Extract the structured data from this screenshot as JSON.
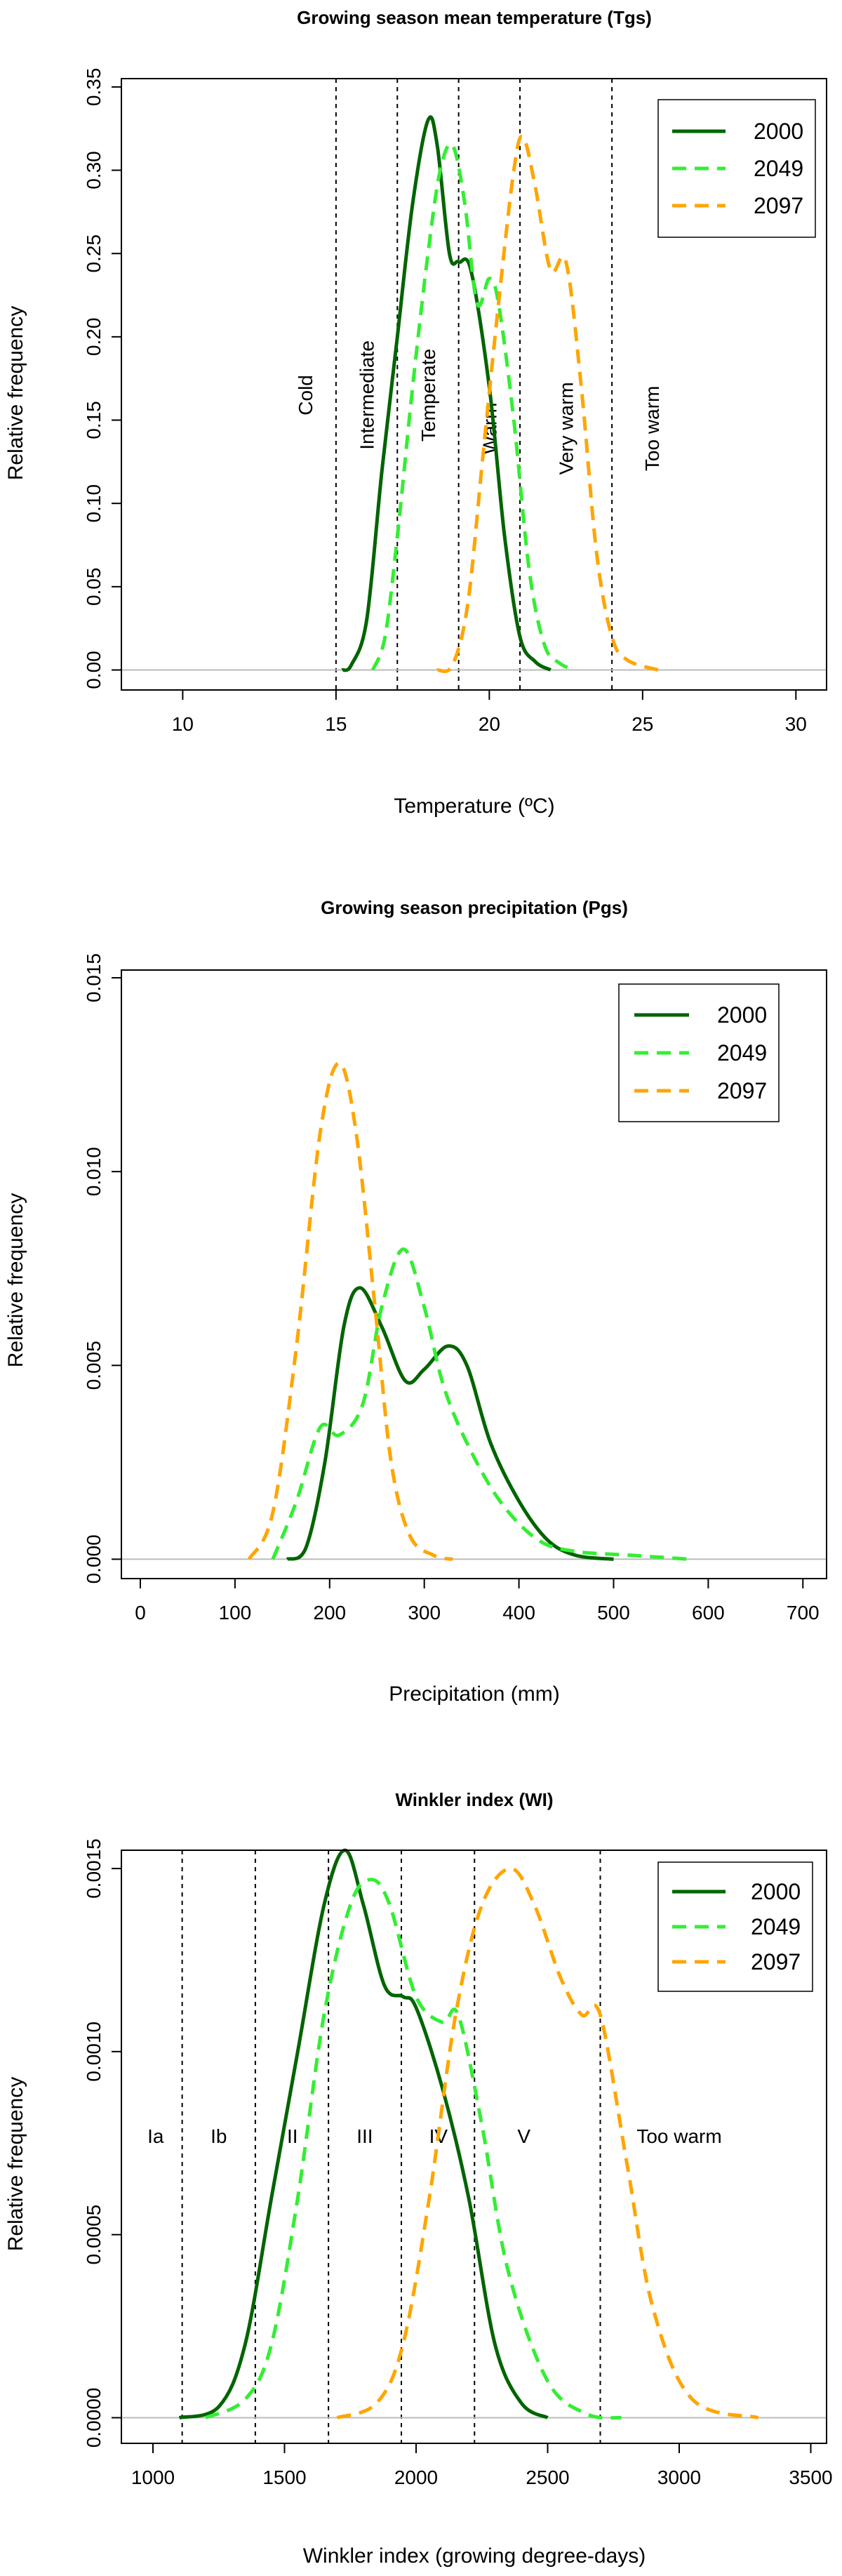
{
  "chart_data": [
    {
      "type": "line",
      "title": "Growing season mean temperature (Tgs)",
      "xlabel": "Temperature (ºC)",
      "ylabel": "Relative frequency",
      "xlim": [
        8,
        31
      ],
      "ylim": [
        -0.012,
        0.355
      ],
      "xticks": [
        "10",
        "15",
        "20",
        "25",
        "30"
      ],
      "yticks": [
        "0.00",
        "0.05",
        "0.10",
        "0.15",
        "0.20",
        "0.25",
        "0.30",
        "0.35"
      ],
      "legend_position": "top-right",
      "zone_lines": [
        15,
        17,
        19,
        21,
        24
      ],
      "zones": [
        {
          "label": "Cold",
          "x": 14,
          "y": 0.165
        },
        {
          "label": "Intermediate",
          "x": 16,
          "y": 0.165
        },
        {
          "label": "Temperate",
          "x": 18,
          "y": 0.165
        },
        {
          "label": "Warm",
          "x": 20,
          "y": 0.145
        },
        {
          "label": "Very warm",
          "x": 22.5,
          "y": 0.145
        },
        {
          "label": "Too warm",
          "x": 25.3,
          "y": 0.145
        }
      ],
      "series": [
        {
          "name": "2000",
          "color": "#006400",
          "dash": "solid",
          "points": [
            [
              15.2,
              0.0
            ],
            [
              15.5,
              0.003
            ],
            [
              16,
              0.03
            ],
            [
              16.5,
              0.12
            ],
            [
              17,
              0.2
            ],
            [
              17.5,
              0.28
            ],
            [
              18,
              0.33
            ],
            [
              18.3,
              0.315
            ],
            [
              18.7,
              0.25
            ],
            [
              19,
              0.245
            ],
            [
              19.4,
              0.24
            ],
            [
              20,
              0.17
            ],
            [
              20.5,
              0.08
            ],
            [
              21,
              0.02
            ],
            [
              21.5,
              0.005
            ],
            [
              22,
              0.0
            ]
          ]
        },
        {
          "name": "2049",
          "color": "#33ee33",
          "dash": "dash",
          "points": [
            [
              16.2,
              0.0
            ],
            [
              16.6,
              0.02
            ],
            [
              17,
              0.08
            ],
            [
              17.5,
              0.17
            ],
            [
              18,
              0.25
            ],
            [
              18.4,
              0.3
            ],
            [
              18.8,
              0.315
            ],
            [
              19.2,
              0.28
            ],
            [
              19.6,
              0.22
            ],
            [
              20,
              0.235
            ],
            [
              20.3,
              0.22
            ],
            [
              20.8,
              0.15
            ],
            [
              21.3,
              0.06
            ],
            [
              21.8,
              0.015
            ],
            [
              22.3,
              0.004
            ],
            [
              22.8,
              0.0
            ]
          ]
        },
        {
          "name": "2097",
          "color": "#ffa500",
          "dash": "dash",
          "points": [
            [
              18.3,
              0.0
            ],
            [
              18.8,
              0.003
            ],
            [
              19.3,
              0.04
            ],
            [
              19.8,
              0.13
            ],
            [
              20.3,
              0.22
            ],
            [
              20.8,
              0.3
            ],
            [
              21.1,
              0.32
            ],
            [
              21.5,
              0.29
            ],
            [
              22,
              0.24
            ],
            [
              22.5,
              0.245
            ],
            [
              23,
              0.17
            ],
            [
              23.5,
              0.07
            ],
            [
              24,
              0.02
            ],
            [
              24.5,
              0.006
            ],
            [
              25.5,
              0.0
            ]
          ]
        }
      ]
    },
    {
      "type": "line",
      "title": "Growing season precipitation (Pgs)",
      "xlabel": "Precipitation (mm)",
      "ylabel": "Relative frequency",
      "xlim": [
        -20,
        725
      ],
      "ylim": [
        -0.0005,
        0.0152
      ],
      "xticks": [
        "0",
        "100",
        "200",
        "300",
        "400",
        "500",
        "600",
        "700"
      ],
      "yticks": [
        "0.000",
        "0.005",
        "0.010",
        "0.015"
      ],
      "legend_position": "top-right",
      "zone_lines": [],
      "zones": [],
      "series": [
        {
          "name": "2000",
          "color": "#006400",
          "dash": "solid",
          "points": [
            [
              155,
              0.0
            ],
            [
              175,
              0.0003
            ],
            [
              195,
              0.0025
            ],
            [
              215,
              0.006
            ],
            [
              232,
              0.007
            ],
            [
              255,
              0.006
            ],
            [
              280,
              0.0046
            ],
            [
              300,
              0.0049
            ],
            [
              325,
              0.0055
            ],
            [
              345,
              0.005
            ],
            [
              370,
              0.003
            ],
            [
              400,
              0.0015
            ],
            [
              430,
              0.0005
            ],
            [
              460,
              0.0001
            ],
            [
              500,
              0.0
            ]
          ]
        },
        {
          "name": "2049",
          "color": "#33ee33",
          "dash": "dash",
          "points": [
            [
              140,
              0.0
            ],
            [
              165,
              0.0015
            ],
            [
              190,
              0.0034
            ],
            [
              210,
              0.0032
            ],
            [
              235,
              0.004
            ],
            [
              255,
              0.0065
            ],
            [
              278,
              0.008
            ],
            [
              300,
              0.0065
            ],
            [
              320,
              0.0045
            ],
            [
              345,
              0.003
            ],
            [
              380,
              0.0015
            ],
            [
              420,
              0.0005
            ],
            [
              460,
              0.0002
            ],
            [
              520,
              0.0001
            ],
            [
              580,
              0.0
            ]
          ]
        },
        {
          "name": "2097",
          "color": "#ffa500",
          "dash": "dash",
          "points": [
            [
              115,
              0.0
            ],
            [
              140,
              0.0012
            ],
            [
              165,
              0.0055
            ],
            [
              190,
              0.011
            ],
            [
              210,
              0.0128
            ],
            [
              228,
              0.011
            ],
            [
              248,
              0.0065
            ],
            [
              265,
              0.0025
            ],
            [
              285,
              0.0006
            ],
            [
              310,
              0.0001
            ],
            [
              330,
              0.0
            ]
          ]
        }
      ]
    },
    {
      "type": "line",
      "title": "Winkler index (WI)",
      "xlabel": "Winkler index (growing degree-days)",
      "ylabel": "Relative frequency",
      "xlim": [
        880,
        3560
      ],
      "ylim": [
        -7e-05,
        0.00155
      ],
      "xticks": [
        "1000",
        "1500",
        "2000",
        "2500",
        "3000",
        "3500"
      ],
      "yticks": [
        "0.0000",
        "0.0005",
        "0.0010",
        "0.0015"
      ],
      "legend_position": "top-right",
      "zone_lines": [
        1111,
        1389,
        1667,
        1944,
        2222,
        2700
      ],
      "zones": [
        {
          "label": "Ia",
          "x": 1010,
          "y": 0.00077
        },
        {
          "label": "Ib",
          "x": 1250,
          "y": 0.00077
        },
        {
          "label": "II",
          "x": 1530,
          "y": 0.00077
        },
        {
          "label": "III",
          "x": 1805,
          "y": 0.00077
        },
        {
          "label": "IV",
          "x": 2085,
          "y": 0.00077
        },
        {
          "label": "V",
          "x": 2410,
          "y": 0.00077
        },
        {
          "label": "Too warm",
          "x": 3000,
          "y": 0.00077
        }
      ],
      "series": [
        {
          "name": "2000",
          "color": "#006400",
          "dash": "solid",
          "points": [
            [
              1100,
              0.0
            ],
            [
              1250,
              3e-05
            ],
            [
              1350,
              0.0002
            ],
            [
              1450,
              0.0006
            ],
            [
              1550,
              0.001
            ],
            [
              1650,
              0.0014
            ],
            [
              1730,
              0.00155
            ],
            [
              1800,
              0.0014
            ],
            [
              1880,
              0.00118
            ],
            [
              1950,
              0.00115
            ],
            [
              2000,
              0.00112
            ],
            [
              2100,
              0.0009
            ],
            [
              2200,
              0.0006
            ],
            [
              2300,
              0.0002
            ],
            [
              2400,
              4e-05
            ],
            [
              2500,
              0.0
            ]
          ]
        },
        {
          "name": "2049",
          "color": "#33ee33",
          "dash": "dash",
          "points": [
            [
              1200,
              0.0
            ],
            [
              1350,
              5e-05
            ],
            [
              1450,
              0.0002
            ],
            [
              1550,
              0.0006
            ],
            [
              1650,
              0.0011
            ],
            [
              1750,
              0.0014
            ],
            [
              1830,
              0.00147
            ],
            [
              1900,
              0.0014
            ],
            [
              2000,
              0.00115
            ],
            [
              2100,
              0.00108
            ],
            [
              2160,
              0.0011
            ],
            [
              2250,
              0.0008
            ],
            [
              2350,
              0.0004
            ],
            [
              2500,
              0.0001
            ],
            [
              2650,
              1e-05
            ],
            [
              2780,
              0.0
            ]
          ]
        },
        {
          "name": "2097",
          "color": "#ffa500",
          "dash": "dash",
          "points": [
            [
              1700,
              0.0
            ],
            [
              1850,
              4e-05
            ],
            [
              1950,
              0.0002
            ],
            [
              2050,
              0.0006
            ],
            [
              2150,
              0.0011
            ],
            [
              2250,
              0.0014
            ],
            [
              2360,
              0.0015
            ],
            [
              2450,
              0.0014
            ],
            [
              2550,
              0.0012
            ],
            [
              2630,
              0.0011
            ],
            [
              2700,
              0.0011
            ],
            [
              2800,
              0.0007
            ],
            [
              2900,
              0.0003
            ],
            [
              3050,
              5e-05
            ],
            [
              3300,
              0.0
            ]
          ]
        }
      ]
    }
  ]
}
